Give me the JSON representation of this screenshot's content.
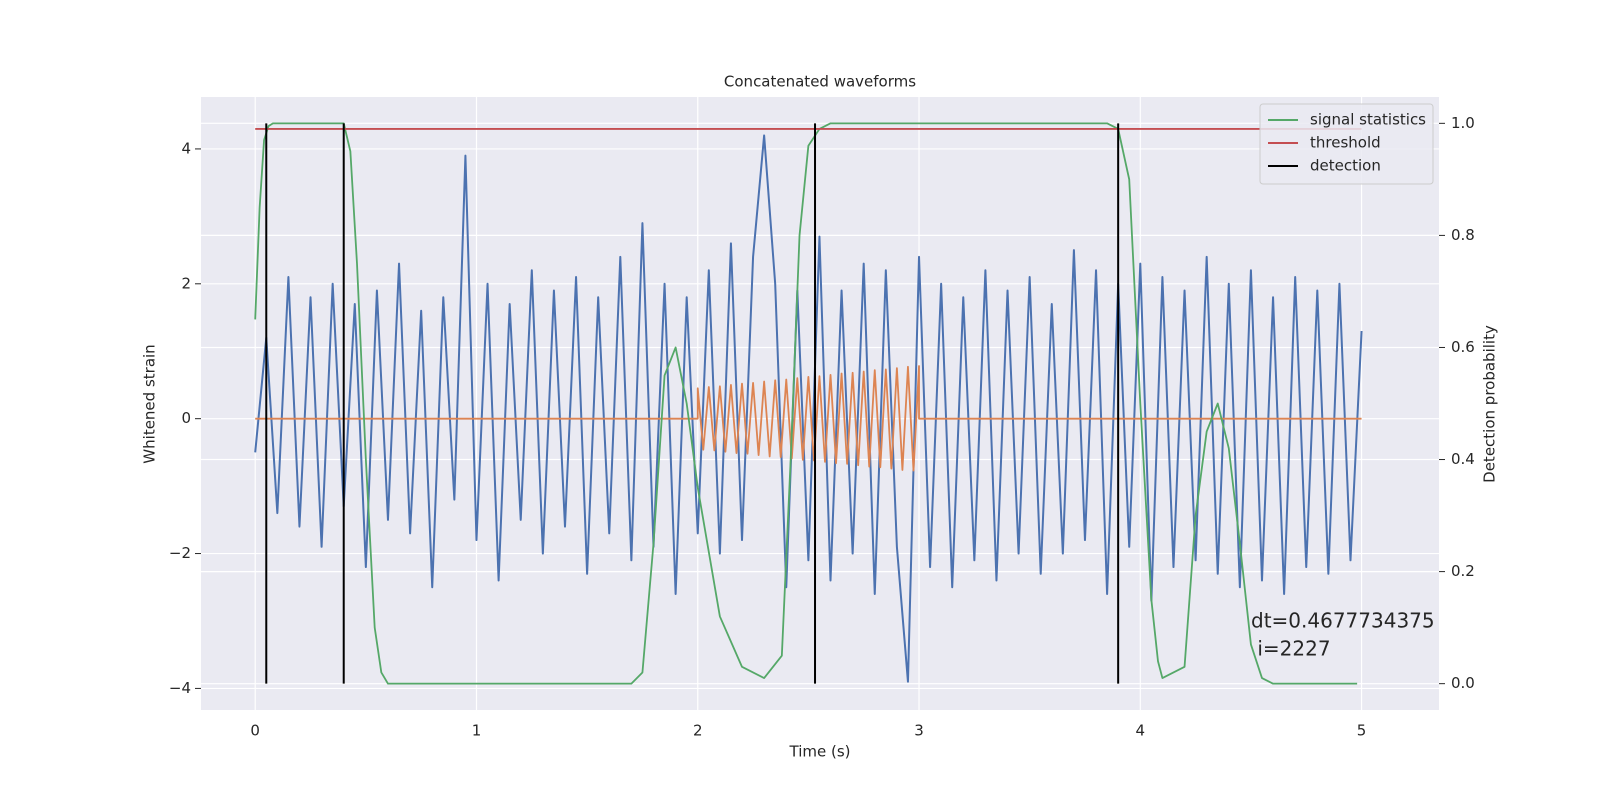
{
  "chart_data": {
    "type": "line",
    "title": "Concatenated waveforms",
    "xlabel": "Time (s)",
    "ylabel": "Whitened strain",
    "y2label": "Detection probability",
    "xlim": [
      -0.245,
      5.35
    ],
    "ylim": [
      -4.32,
      4.77
    ],
    "y2lim": [
      -0.047,
      1.047
    ],
    "xticks": [
      0,
      1,
      2,
      3,
      4,
      5
    ],
    "yticks": [
      {
        "value": -4,
        "label": "−4"
      },
      {
        "value": -2,
        "label": "−2"
      },
      0,
      2,
      4
    ],
    "y2ticks": [
      {
        "value": 0,
        "label": "0.0"
      },
      0.2,
      0.4,
      0.6,
      0.8,
      {
        "value": 1,
        "label": "1.0"
      }
    ],
    "grid": true,
    "legend": "upper right",
    "annotation": [
      "dt=0.4677734375",
      " i=2227"
    ],
    "series": [
      {
        "color": "#4c72b0",
        "x": [
          0,
          0.05,
          0.1,
          0.15,
          0.2,
          0.25,
          0.3,
          0.35,
          0.4,
          0.45,
          0.5,
          0.55,
          0.6,
          0.65,
          0.7,
          0.75,
          0.8,
          0.85,
          0.9,
          0.95,
          1.0,
          1.05,
          1.1,
          1.15,
          1.2,
          1.25,
          1.3,
          1.35,
          1.4,
          1.45,
          1.5,
          1.55,
          1.6,
          1.65,
          1.7,
          1.75,
          1.8,
          1.85,
          1.9,
          1.95,
          2.0,
          2.05,
          2.1,
          2.15,
          2.2,
          2.25,
          2.3,
          2.35,
          2.4,
          2.45,
          2.5,
          2.55,
          2.6,
          2.65,
          2.7,
          2.75,
          2.8,
          2.85,
          2.9,
          2.95,
          3.0,
          3.05,
          3.1,
          3.15,
          3.2,
          3.25,
          3.3,
          3.35,
          3.4,
          3.45,
          3.5,
          3.55,
          3.6,
          3.65,
          3.7,
          3.75,
          3.8,
          3.85,
          3.9,
          3.95,
          4.0,
          4.05,
          4.1,
          4.15,
          4.2,
          4.25,
          4.3,
          4.35,
          4.4,
          4.45,
          4.5,
          4.55,
          4.6,
          4.65,
          4.7,
          4.75,
          4.8,
          4.85,
          4.9,
          4.95,
          5.0
        ],
        "values": [
          -0.5,
          1.2,
          -1.4,
          2.1,
          -1.6,
          1.8,
          -1.9,
          2.0,
          -1.3,
          1.7,
          -2.2,
          1.9,
          -1.5,
          2.3,
          -1.7,
          1.6,
          -2.5,
          1.8,
          -1.2,
          3.9,
          -1.8,
          2.0,
          -2.4,
          1.7,
          -1.5,
          2.2,
          -2.0,
          1.9,
          -1.6,
          2.1,
          -2.3,
          1.8,
          -1.7,
          2.4,
          -2.1,
          2.9,
          -1.9,
          2.0,
          -2.6,
          1.8,
          -1.7,
          2.2,
          -2.0,
          2.6,
          -1.8,
          2.4,
          4.2,
          2.0,
          -2.5,
          1.9,
          -2.1,
          2.7,
          -2.4,
          1.9,
          -2.0,
          2.3,
          -2.6,
          2.2,
          -1.9,
          -3.9,
          2.4,
          -2.2,
          2.0,
          -2.5,
          1.8,
          -2.1,
          2.2,
          -2.4,
          1.9,
          -2.0,
          2.1,
          -2.3,
          1.7,
          -2.0,
          2.5,
          -1.8,
          2.2,
          -2.6,
          2.0,
          -1.9,
          2.3,
          -2.7,
          2.1,
          -2.2,
          1.9,
          -2.1,
          2.4,
          -2.3,
          2.0,
          -2.5,
          2.2,
          -2.4,
          1.8,
          -2.6,
          2.1,
          -2.2,
          1.9,
          -2.3,
          2.0,
          -2.1,
          1.3
        ]
      },
      {
        "color": "#dd8452",
        "x": [
          0,
          2.0,
          2.0,
          2.025,
          2.05,
          2.075,
          2.1,
          2.125,
          2.15,
          2.175,
          2.2,
          2.225,
          2.25,
          2.275,
          2.3,
          2.325,
          2.35,
          2.375,
          2.4,
          2.425,
          2.45,
          2.475,
          2.5,
          2.525,
          2.55,
          2.575,
          2.6,
          2.625,
          2.65,
          2.675,
          2.7,
          2.725,
          2.75,
          2.775,
          2.8,
          2.825,
          2.85,
          2.875,
          2.9,
          2.925,
          2.95,
          2.975,
          3.0,
          3.0,
          5.0
        ],
        "values": [
          0,
          0,
          0.45,
          -0.46,
          0.47,
          -0.47,
          0.48,
          -0.49,
          0.5,
          -0.51,
          0.52,
          -0.52,
          0.53,
          -0.54,
          0.55,
          -0.56,
          0.57,
          -0.57,
          0.58,
          -0.59,
          0.6,
          -0.61,
          0.62,
          -0.62,
          0.63,
          -0.64,
          0.65,
          -0.66,
          0.67,
          -0.67,
          0.68,
          -0.69,
          0.7,
          -0.71,
          0.72,
          -0.72,
          0.73,
          -0.74,
          0.75,
          -0.76,
          0.77,
          -0.77,
          0.78,
          0,
          0
        ]
      },
      {
        "name": "signal statistics",
        "color": "#55a868",
        "axis": "y2",
        "x": [
          0,
          0.02,
          0.04,
          0.06,
          0.08,
          0.1,
          0.4,
          0.43,
          0.46,
          0.5,
          0.54,
          0.57,
          0.6,
          1.7,
          1.75,
          1.8,
          1.85,
          1.9,
          1.95,
          2.0,
          2.1,
          2.2,
          2.3,
          2.38,
          2.42,
          2.46,
          2.5,
          2.55,
          2.6,
          3.85,
          3.9,
          3.95,
          4.0,
          4.05,
          4.08,
          4.1,
          4.2,
          4.25,
          4.3,
          4.35,
          4.4,
          4.45,
          4.5,
          4.55,
          4.6,
          4.98
        ],
        "values": [
          0.65,
          0.85,
          0.97,
          0.995,
          1.0,
          1.0,
          1.0,
          0.95,
          0.75,
          0.4,
          0.1,
          0.02,
          0.0,
          0.0,
          0.02,
          0.25,
          0.55,
          0.6,
          0.5,
          0.35,
          0.12,
          0.03,
          0.01,
          0.05,
          0.4,
          0.8,
          0.96,
          0.99,
          1.0,
          1.0,
          0.99,
          0.9,
          0.5,
          0.15,
          0.04,
          0.01,
          0.03,
          0.3,
          0.45,
          0.5,
          0.42,
          0.25,
          0.07,
          0.01,
          0.0,
          0.0
        ]
      },
      {
        "name": "threshold",
        "color": "#c44e52",
        "axis": "y2",
        "x": [
          0,
          5
        ],
        "values": [
          0.99,
          0.99
        ]
      },
      {
        "name": "detection",
        "color": "#000000",
        "axis": "y2",
        "kind": "vlines",
        "x": [
          0.05,
          0.4,
          2.53,
          3.9
        ],
        "values": [
          1,
          1,
          1,
          1
        ]
      }
    ]
  }
}
